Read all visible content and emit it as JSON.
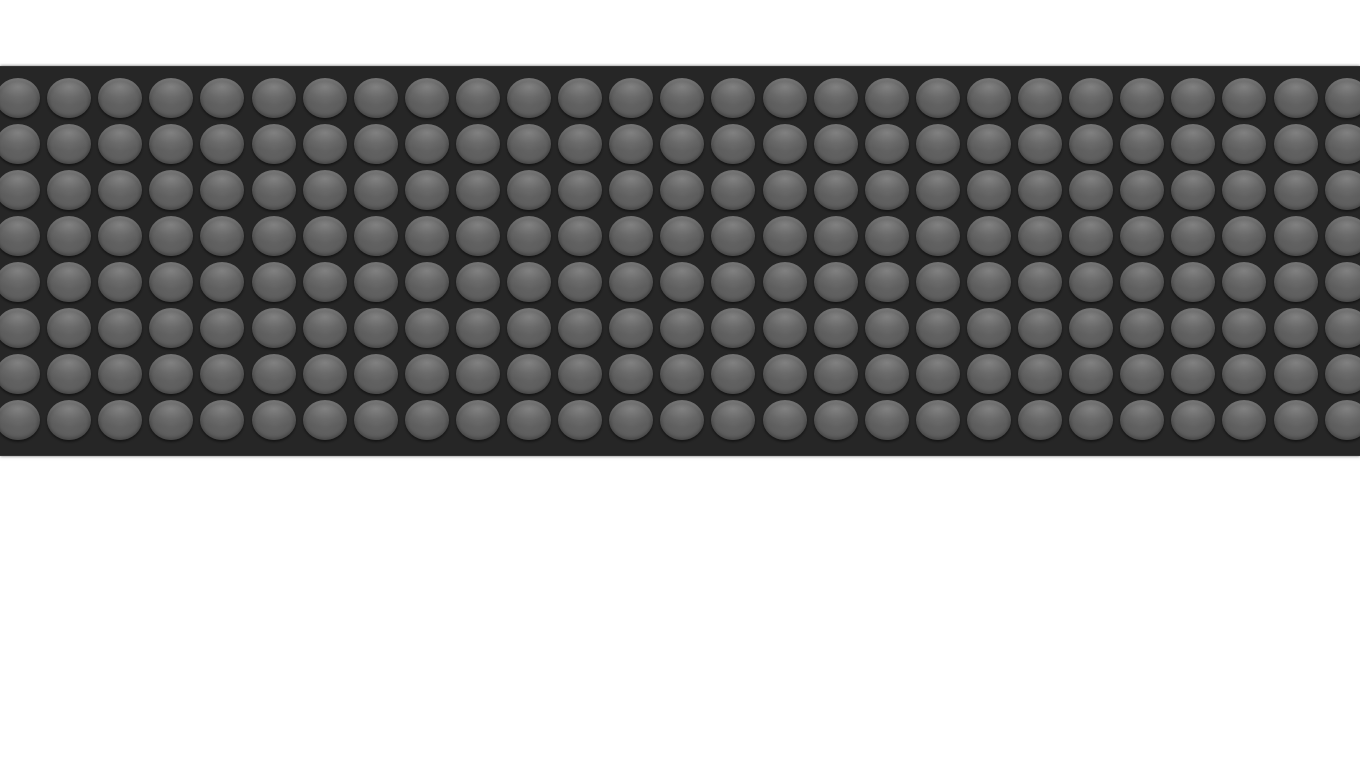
{
  "led_display": {
    "rows": 8,
    "columns": 27,
    "lit_cells": 0,
    "colors": {
      "panel": "#262626",
      "led_off": "#5e5e5e",
      "background": "#ffffff"
    }
  }
}
